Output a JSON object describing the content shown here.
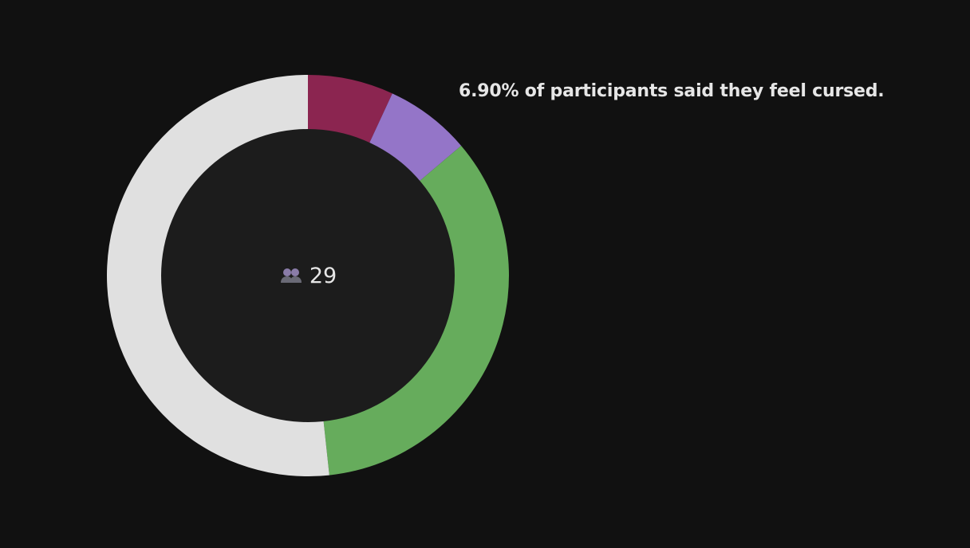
{
  "chart_data": {
    "type": "pie",
    "variant": "donut",
    "slices": [
      {
        "value": 6.9,
        "color": "#8b2550"
      },
      {
        "value": 6.9,
        "color": "#9475c8"
      },
      {
        "value": 34.5,
        "color": "#66ac5c"
      },
      {
        "value": 51.7,
        "color": "#e0e0e0"
      }
    ],
    "center_value": "29",
    "annotation": "6.90% of participants said they feel cursed."
  },
  "icons": {
    "center": "people-icon"
  },
  "colors": {
    "background": "#111111",
    "hole": "#1c1c1c",
    "text": "#e6e6e6"
  }
}
